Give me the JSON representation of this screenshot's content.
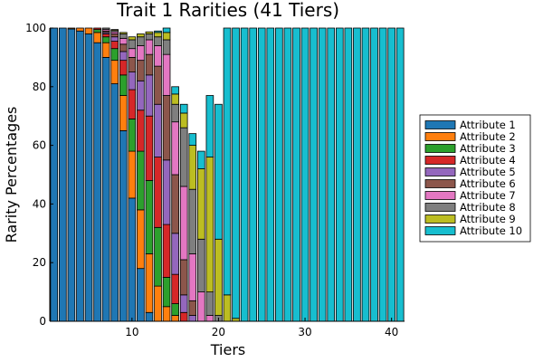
{
  "chart_data": {
    "type": "bar",
    "stacked": true,
    "title": "Trait 1 Rarities (41 Tiers)",
    "xlabel": "Tiers",
    "ylabel": "Rarity Percentages",
    "xlim": [
      0.5,
      41.5
    ],
    "ylim": [
      0,
      100
    ],
    "x_ticks": [
      10,
      20,
      30,
      40
    ],
    "y_ticks": [
      0,
      20,
      40,
      60,
      80,
      100
    ],
    "grid": false,
    "legend_position": "right",
    "categories": [
      1,
      2,
      3,
      4,
      5,
      6,
      7,
      8,
      9,
      10,
      11,
      12,
      13,
      14,
      15,
      16,
      17,
      18,
      19,
      20,
      21,
      22,
      23,
      24,
      25,
      26,
      27,
      28,
      29,
      30,
      31,
      32,
      33,
      34,
      35,
      36,
      37,
      38,
      39,
      40,
      41
    ],
    "series": [
      {
        "name": "Attribute 1",
        "color": "#1f77b4",
        "values": [
          100,
          100,
          99.7,
          99,
          98,
          95,
          90,
          81,
          65,
          42,
          18,
          3,
          0,
          0,
          0,
          0,
          0,
          0,
          0,
          0,
          0,
          0,
          0,
          0,
          0,
          0,
          0,
          0,
          0,
          0,
          0,
          0,
          0,
          0,
          0,
          0,
          0,
          0,
          0,
          0,
          0
        ]
      },
      {
        "name": "Attribute 2",
        "color": "#ff7f0e",
        "values": [
          0,
          0,
          0.3,
          1,
          2,
          3.5,
          5,
          8,
          12,
          16,
          20,
          20,
          12,
          5,
          2,
          0,
          0,
          0,
          0,
          0,
          0,
          0,
          0,
          0,
          0,
          0,
          0,
          0,
          0,
          0,
          0,
          0,
          0,
          0,
          0,
          0,
          0,
          0,
          0,
          0,
          0
        ]
      },
      {
        "name": "Attribute 3",
        "color": "#2ca02c",
        "values": [
          0,
          0,
          0,
          0,
          0,
          1,
          2,
          4,
          7,
          11,
          20,
          25,
          20,
          10,
          4,
          0,
          0,
          0,
          0,
          0,
          0,
          0,
          0,
          0,
          0,
          0,
          0,
          0,
          0,
          0,
          0,
          0,
          0,
          0,
          0,
          0,
          0,
          0,
          0,
          0,
          0
        ]
      },
      {
        "name": "Attribute 4",
        "color": "#d62728",
        "values": [
          0,
          0,
          0,
          0,
          0,
          0.5,
          1,
          2.5,
          5,
          10,
          14,
          22,
          24,
          18,
          10,
          3,
          0,
          0,
          0,
          0,
          0,
          0,
          0,
          0,
          0,
          0,
          0,
          0,
          0,
          0,
          0,
          0,
          0,
          0,
          0,
          0,
          0,
          0,
          0,
          0,
          0
        ]
      },
      {
        "name": "Attribute 5",
        "color": "#9467bd",
        "values": [
          0,
          0,
          0,
          0,
          0,
          0,
          0.5,
          1.5,
          3,
          6,
          10,
          14,
          18,
          22,
          14,
          6,
          2,
          0,
          0,
          0,
          0,
          0,
          0,
          0,
          0,
          0,
          0,
          0,
          0,
          0,
          0,
          0,
          0,
          0,
          0,
          0,
          0,
          0,
          0,
          0,
          0
        ]
      },
      {
        "name": "Attribute 6",
        "color": "#8c564b",
        "values": [
          0,
          0,
          0,
          0,
          0,
          0,
          0.5,
          1,
          2.5,
          5,
          7,
          7,
          13,
          22,
          20,
          12,
          5,
          0,
          0,
          0,
          0,
          0,
          0,
          0,
          0,
          0,
          0,
          0,
          0,
          0,
          0,
          0,
          0,
          0,
          0,
          0,
          0,
          0,
          0,
          0,
          0
        ]
      },
      {
        "name": "Attribute 7",
        "color": "#e377c2",
        "values": [
          0,
          0,
          0,
          0,
          0,
          0,
          0.5,
          0.7,
          2,
          3,
          5,
          5,
          7,
          14,
          18,
          25,
          16,
          10,
          2,
          0,
          0,
          0,
          0,
          0,
          0,
          0,
          0,
          0,
          0,
          0,
          0,
          0,
          0,
          0,
          0,
          0,
          0,
          0,
          0,
          0,
          0
        ]
      },
      {
        "name": "Attribute 8",
        "color": "#7f7f7f",
        "values": [
          0,
          0,
          0,
          0,
          0,
          0,
          0.5,
          0.5,
          1.5,
          3,
          3,
          2,
          3,
          5,
          6,
          20,
          22,
          18,
          8,
          2,
          0,
          0,
          0,
          0,
          0,
          0,
          0,
          0,
          0,
          0,
          0,
          0,
          0,
          0,
          0,
          0,
          0,
          0,
          0,
          0,
          0
        ]
      },
      {
        "name": "Attribute 9",
        "color": "#bcbd22",
        "values": [
          0,
          0,
          0,
          0,
          0,
          0,
          0,
          0.3,
          0.5,
          1,
          1,
          0.7,
          1.5,
          2.5,
          3.5,
          5,
          15,
          24,
          46,
          26,
          9,
          1,
          0,
          0,
          0,
          0,
          0,
          0,
          0,
          0,
          0,
          0,
          0,
          0,
          0,
          0,
          0,
          0,
          0,
          0,
          0
        ]
      },
      {
        "name": "Attribute 10",
        "color": "#17becf",
        "values": [
          0,
          0,
          0,
          0,
          0,
          0,
          0,
          0,
          0,
          0,
          0,
          0,
          0.5,
          1.5,
          2.5,
          3,
          4,
          6,
          21,
          46,
          91,
          99,
          100,
          100,
          100,
          100,
          100,
          100,
          100,
          100,
          100,
          100,
          100,
          100,
          100,
          100,
          100,
          100,
          100,
          100,
          100
        ]
      }
    ]
  }
}
